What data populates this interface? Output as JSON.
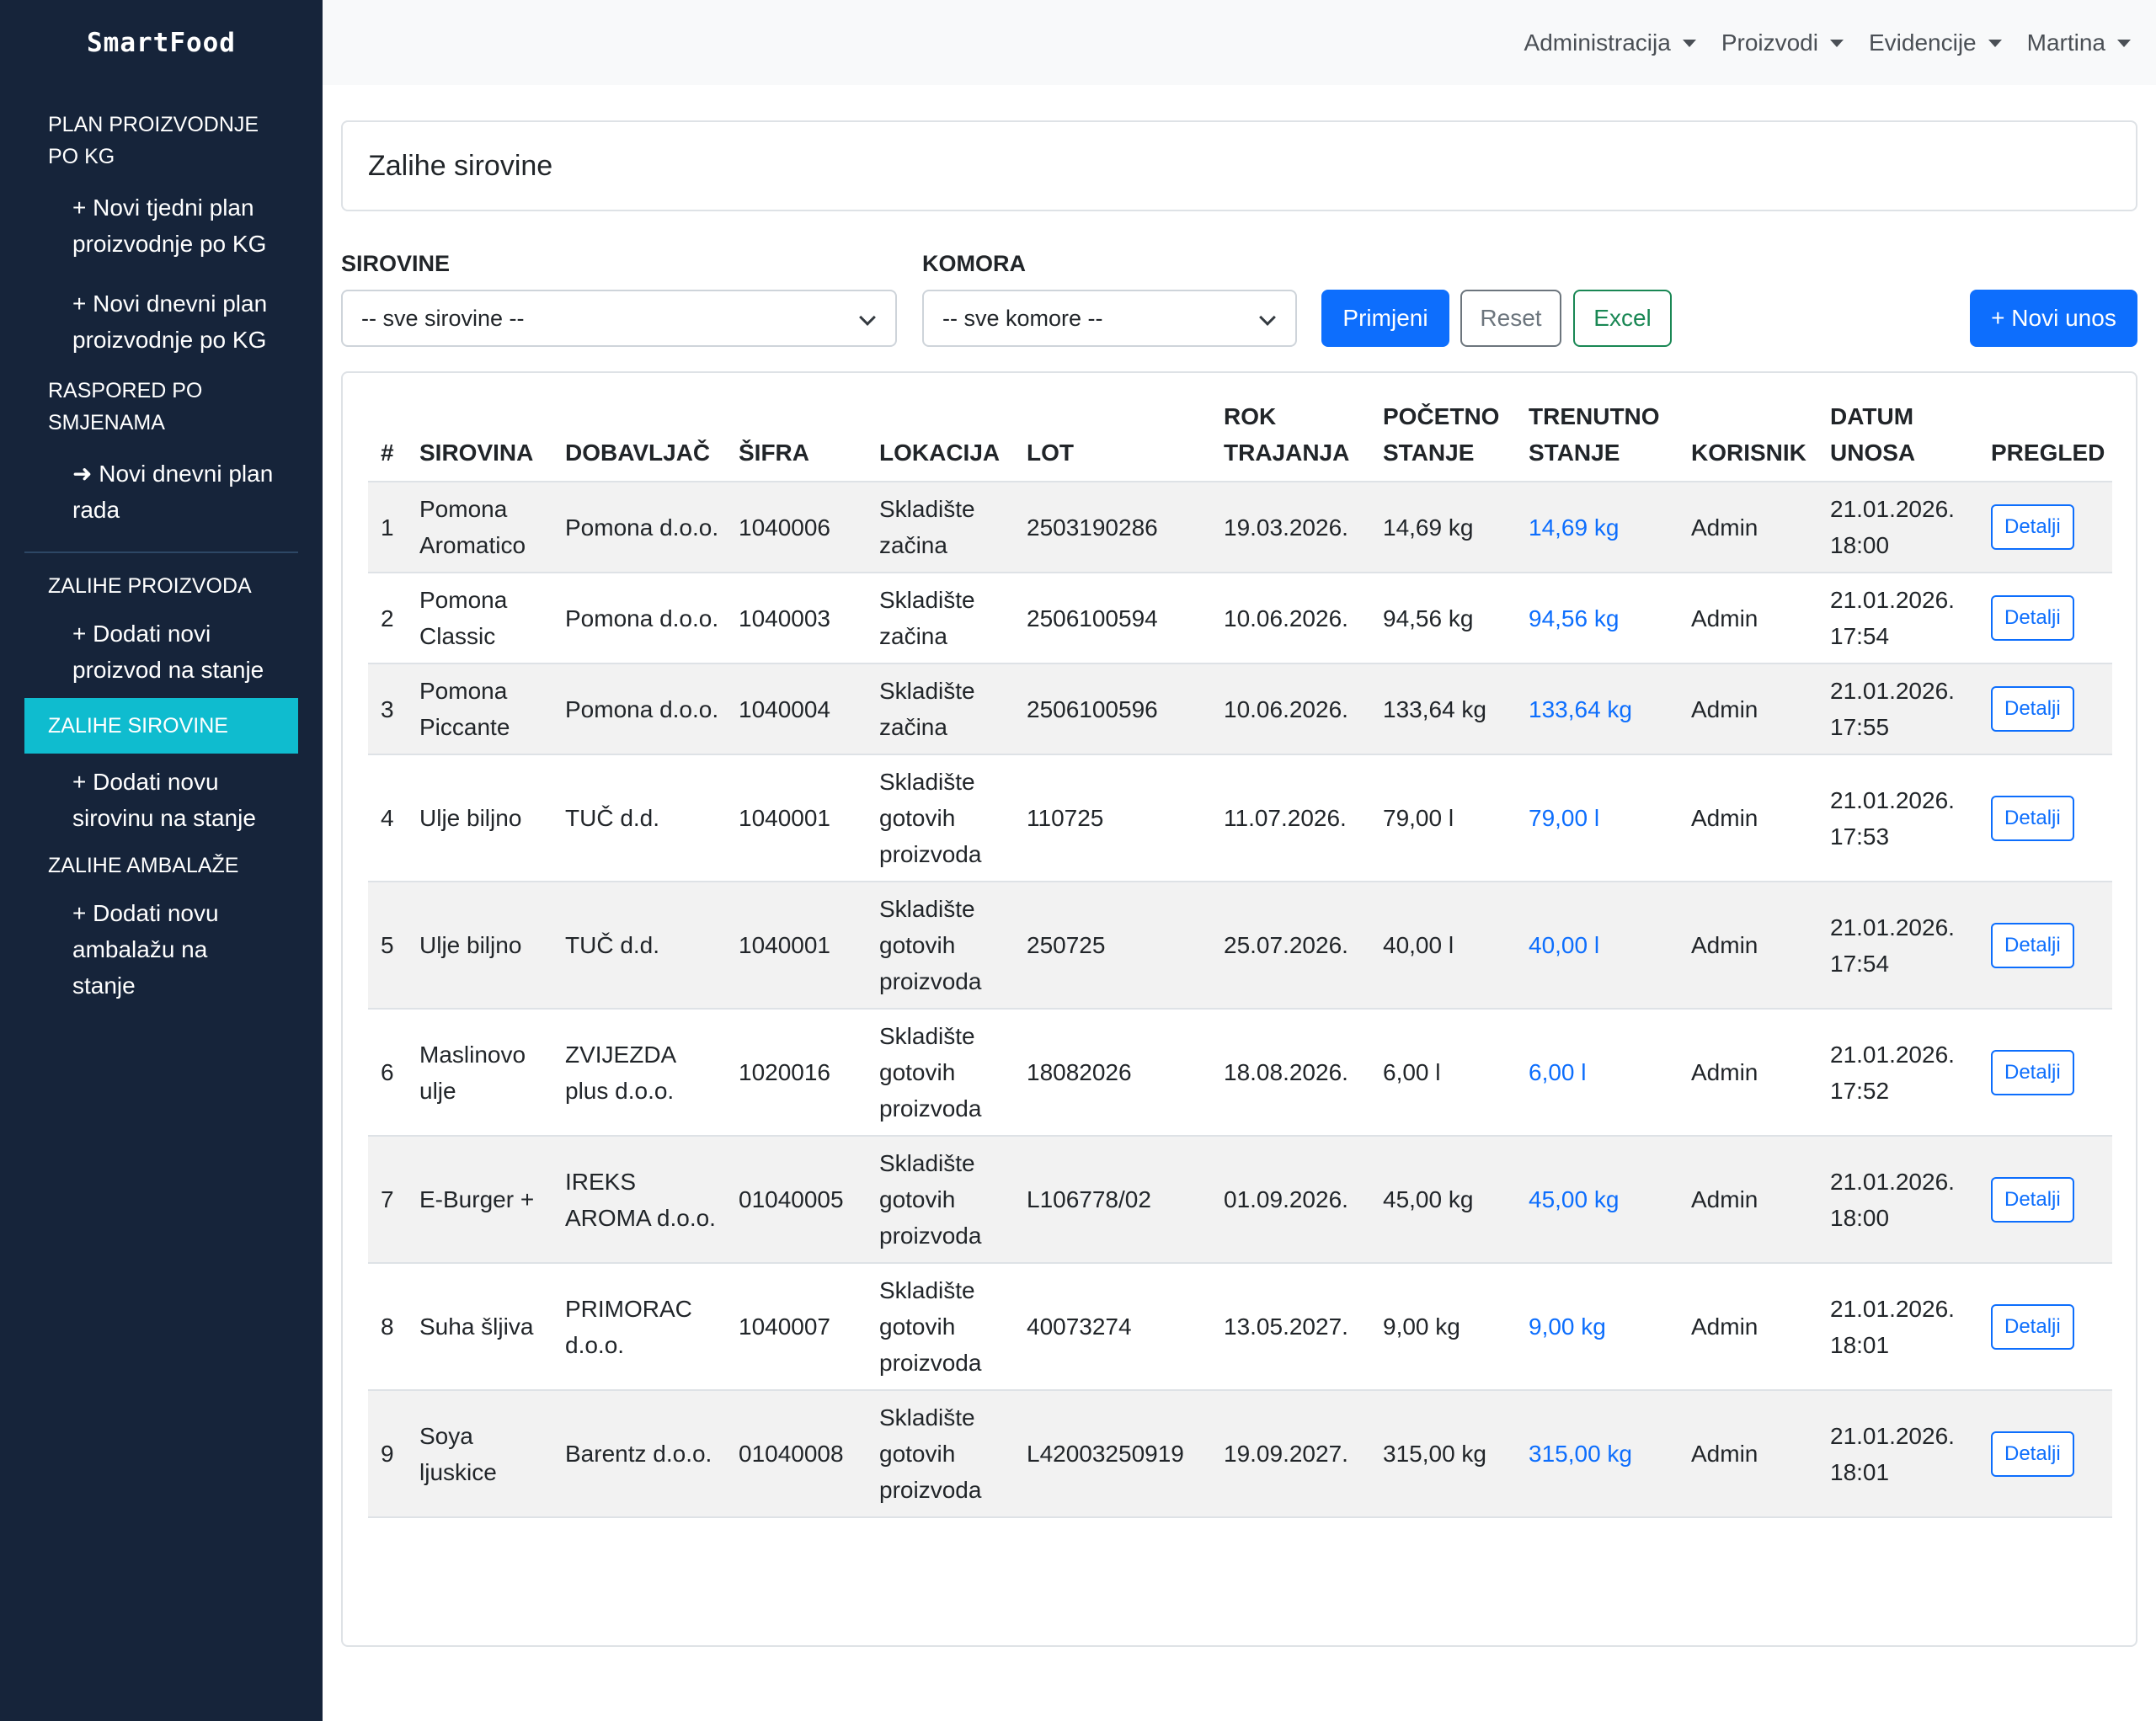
{
  "brand": "SmartFood",
  "sidebar": {
    "sections": [
      {
        "head": "PLAN PROIZVODNJE PO KG",
        "subs": [
          "+ Novi tjedni plan proizvodnje po KG",
          "+ Novi dnevni plan proizvodnje po KG"
        ]
      },
      {
        "head": "RASPORED PO SMJENAMA",
        "subs": [
          "➜ Novi dnevni plan rada"
        ]
      },
      {
        "head": "ZALIHE PROIZVODA",
        "subs": [
          "+ Dodati novi proizvod na stanje"
        ]
      },
      {
        "head": "ZALIHE SIROVINE",
        "subs": [
          "+ Dodati novu sirovinu na stanje"
        ]
      },
      {
        "head": "ZALIHE AMBALAŽE",
        "subs": [
          "+ Dodati novu ambalažu na stanje"
        ]
      }
    ]
  },
  "topnav": [
    "Administracija",
    "Proizvodi",
    "Evidencije",
    "Martina"
  ],
  "page_title": "Zalihe sirovine",
  "filters": {
    "sirovine_label": "SIROVINE",
    "sirovine_value": "-- sve sirovine --",
    "komora_label": "KOMORA",
    "komora_value": "-- sve komore --",
    "apply": "Primjeni",
    "reset": "Reset",
    "excel": "Excel",
    "new": "+ Novi unos"
  },
  "table": {
    "columns": [
      "#",
      "SIROVINA",
      "DOBAVLJAČ",
      "ŠIFRA",
      "LOKACIJA",
      "LOT",
      "ROK TRAJANJA",
      "POČETNO STANJE",
      "TRENUTNO STANJE",
      "KORISNIK",
      "DATUM UNOSA",
      "PREGLED"
    ],
    "rows": [
      [
        "1",
        "Pomona Aromatico",
        "Pomona d.o.o.",
        "1040006",
        "Skladište začina",
        "2503190286",
        "19.03.2026.",
        "14,69 kg",
        "14,69 kg",
        "Admin",
        "21.01.2026. 18:00",
        "Detalji"
      ],
      [
        "2",
        "Pomona Classic",
        "Pomona d.o.o.",
        "1040003",
        "Skladište začina",
        "2506100594",
        "10.06.2026.",
        "94,56 kg",
        "94,56 kg",
        "Admin",
        "21.01.2026. 17:54",
        "Detalji"
      ],
      [
        "3",
        "Pomona Piccante",
        "Pomona d.o.o.",
        "1040004",
        "Skladište začina",
        "2506100596",
        "10.06.2026.",
        "133,64 kg",
        "133,64 kg",
        "Admin",
        "21.01.2026. 17:55",
        "Detalji"
      ],
      [
        "4",
        "Ulje biljno",
        "TUČ d.d.",
        "1040001",
        "Skladište gotovih proizvoda",
        "110725",
        "11.07.2026.",
        "79,00 l",
        "79,00 l",
        "Admin",
        "21.01.2026. 17:53",
        "Detalji"
      ],
      [
        "5",
        "Ulje biljno",
        "TUČ d.d.",
        "1040001",
        "Skladište gotovih proizvoda",
        "250725",
        "25.07.2026.",
        "40,00 l",
        "40,00 l",
        "Admin",
        "21.01.2026. 17:54",
        "Detalji"
      ],
      [
        "6",
        "Maslinovo ulje",
        "ZVIJEZDA plus d.o.o.",
        "1020016",
        "Skladište gotovih proizvoda",
        "18082026",
        "18.08.2026.",
        "6,00 l",
        "6,00 l",
        "Admin",
        "21.01.2026. 17:52",
        "Detalji"
      ],
      [
        "7",
        "E-Burger +",
        "IREKS AROMA d.o.o.",
        "01040005",
        "Skladište gotovih proizvoda",
        "L106778/02",
        "01.09.2026.",
        "45,00 kg",
        "45,00 kg",
        "Admin",
        "21.01.2026. 18:00",
        "Detalji"
      ],
      [
        "8",
        "Suha šljiva",
        "PRIMORAC d.o.o.",
        "1040007",
        "Skladište gotovih proizvoda",
        "40073274",
        "13.05.2027.",
        "9,00 kg",
        "9,00 kg",
        "Admin",
        "21.01.2026. 18:01",
        "Detalji"
      ],
      [
        "9",
        "Soya ljuskice",
        "Barentz d.o.o.",
        "01040008",
        "Skladište gotovih proizvoda",
        "L42003250919",
        "19.09.2027.",
        "315,00 kg",
        "315,00 kg",
        "Admin",
        "21.01.2026. 18:01",
        "Detalji"
      ]
    ]
  },
  "colors": {
    "sidebar_bg": "#16243a",
    "active": "#0fbccf",
    "primary": "#0d6efd",
    "success": "#198754"
  }
}
